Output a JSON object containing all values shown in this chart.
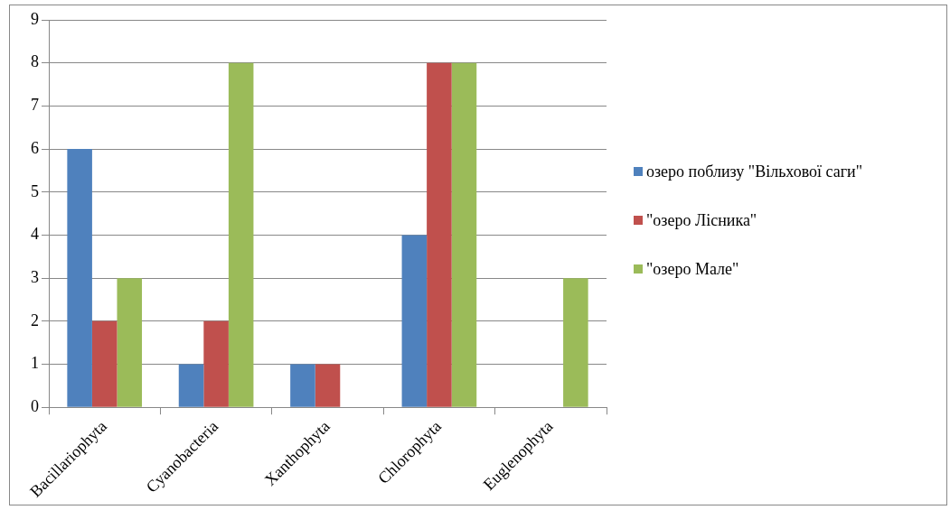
{
  "chart_data": {
    "type": "bar",
    "categories": [
      "Bacillariophyta",
      "Cyanobacteria",
      "Xanthophyta",
      "Chlorophyta",
      "Euglenophyta"
    ],
    "series": [
      {
        "name": "озеро поблизу \"Вільхової саги\"",
        "color": "#4f81bd",
        "values": [
          6,
          1,
          1,
          4,
          0
        ]
      },
      {
        "name": "\"озеро Лісника\"",
        "color": "#c0504d",
        "values": [
          2,
          2,
          1,
          8,
          0
        ]
      },
      {
        "name": "\"озеро Мале\"",
        "color": "#9bbb59",
        "values": [
          3,
          8,
          0,
          8,
          3
        ]
      }
    ],
    "ylim": [
      0,
      9
    ],
    "yticks": [
      0,
      1,
      2,
      3,
      4,
      5,
      6,
      7,
      8,
      9
    ],
    "grid": "y",
    "legend": "right"
  }
}
